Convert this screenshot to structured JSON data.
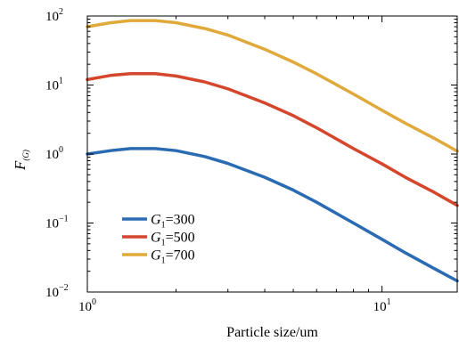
{
  "chart_data": {
    "type": "line",
    "xscale": "log",
    "yscale": "log",
    "xlabel": "Particle size/um",
    "ylabel_main": "F",
    "ylabel_sub": "(G)",
    "xlim": [
      1,
      18
    ],
    "ylim": [
      0.01,
      100
    ],
    "x_ticks": [
      {
        "value": 1,
        "base": "10",
        "exp": "0"
      },
      {
        "value": 10,
        "base": "10",
        "exp": "1"
      }
    ],
    "y_ticks": [
      {
        "value": 0.01,
        "base": "10",
        "exp": "−2"
      },
      {
        "value": 0.1,
        "base": "10",
        "exp": "−1"
      },
      {
        "value": 1,
        "base": "10",
        "exp": "0"
      },
      {
        "value": 10,
        "base": "10",
        "exp": "1"
      },
      {
        "value": 100,
        "base": "10",
        "exp": "2"
      }
    ],
    "legend_position": "lower-left",
    "grid": false,
    "series": [
      {
        "name_var": "G",
        "name_sub": "1",
        "name_val": "=300",
        "color": "#2a6bb3",
        "x": [
          1.0,
          1.2,
          1.4,
          1.7,
          2.0,
          2.5,
          3.0,
          4.0,
          5.0,
          6.0,
          8.0,
          10.0,
          12.0,
          15.0,
          18.0
        ],
        "y": [
          1.0,
          1.12,
          1.2,
          1.2,
          1.12,
          0.92,
          0.73,
          0.46,
          0.3,
          0.2,
          0.1,
          0.058,
          0.037,
          0.022,
          0.0145
        ]
      },
      {
        "name_var": "G",
        "name_sub": "1",
        "name_val": "=500",
        "color": "#d4472d",
        "x": [
          1.0,
          1.2,
          1.4,
          1.7,
          2.0,
          2.5,
          3.0,
          4.0,
          5.0,
          6.0,
          8.0,
          10.0,
          12.0,
          15.0,
          18.0
        ],
        "y": [
          12,
          13.8,
          14.6,
          14.6,
          13.5,
          11.1,
          8.8,
          5.5,
          3.6,
          2.4,
          1.2,
          0.72,
          0.46,
          0.28,
          0.18
        ]
      },
      {
        "name_var": "G",
        "name_sub": "1",
        "name_val": "=700",
        "color": "#e0a93b",
        "x": [
          1.0,
          1.2,
          1.4,
          1.7,
          2.0,
          2.5,
          3.0,
          4.0,
          5.0,
          6.0,
          8.0,
          10.0,
          12.0,
          15.0,
          18.0
        ],
        "y": [
          70,
          80,
          86,
          86,
          80,
          66,
          53,
          33,
          21.5,
          14.5,
          7.4,
          4.3,
          2.8,
          1.7,
          1.1
        ]
      }
    ]
  }
}
